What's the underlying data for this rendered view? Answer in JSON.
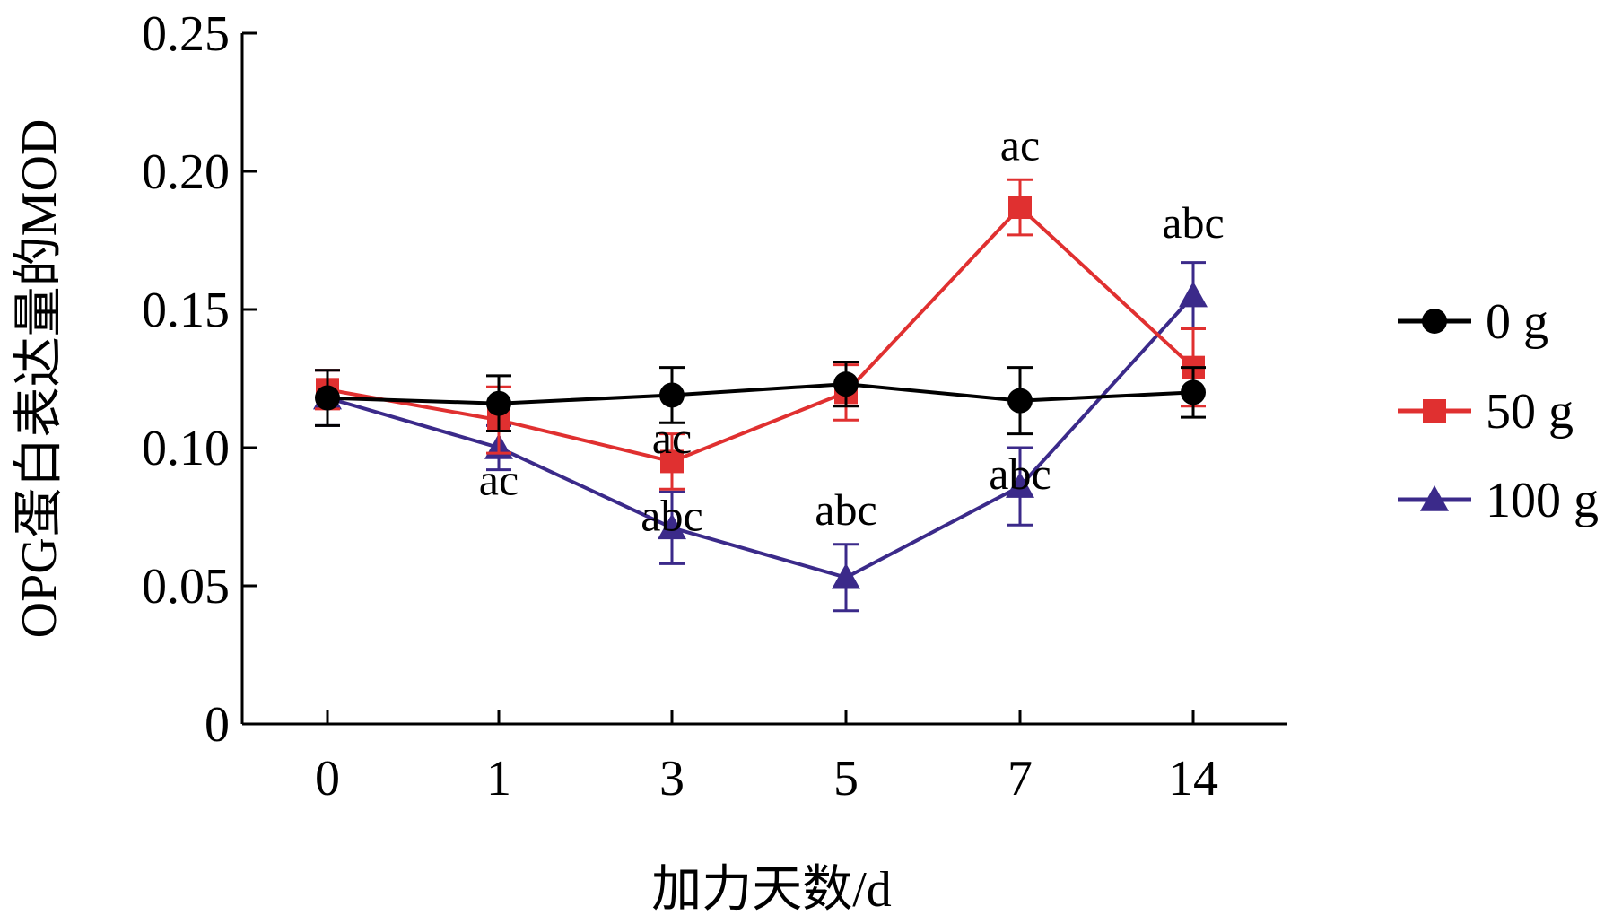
{
  "chart_data": {
    "type": "line",
    "title": "",
    "xlabel": "加力天数/d",
    "ylabel": "OPG蛋白表达量的MOD",
    "categories": [
      "0",
      "1",
      "3",
      "5",
      "7",
      "14"
    ],
    "ylim": [
      0,
      0.25
    ],
    "yticks": [
      "0",
      "0.05",
      "0.10",
      "0.15",
      "0.20",
      "0.25"
    ],
    "grid": false,
    "legend_position": "right",
    "series": [
      {
        "name": "0 g",
        "color": "#000000",
        "marker": "circle",
        "values": [
          0.118,
          0.116,
          0.119,
          0.123,
          0.117,
          0.12
        ],
        "errors": [
          0.01,
          0.01,
          0.01,
          0.008,
          0.012,
          0.009
        ]
      },
      {
        "name": "50 g",
        "color": "#e03030",
        "marker": "square",
        "values": [
          0.121,
          0.11,
          0.095,
          0.12,
          0.187,
          0.129
        ],
        "errors": [
          0.007,
          0.012,
          0.01,
          0.01,
          0.01,
          0.014
        ]
      },
      {
        "name": "100 g",
        "color": "#3b2a8a",
        "marker": "triangle",
        "values": [
          0.118,
          0.1,
          0.071,
          0.053,
          0.086,
          0.155
        ],
        "errors": [
          0.01,
          0.008,
          0.013,
          0.012,
          0.014,
          0.012
        ]
      }
    ],
    "annotations": [
      {
        "text": "ac",
        "x": "1",
        "y": 0.083
      },
      {
        "text": "ac",
        "x": "3",
        "y": 0.098
      },
      {
        "text": "abc",
        "x": "3",
        "y": 0.07
      },
      {
        "text": "abc",
        "x": "5",
        "y": 0.072
      },
      {
        "text": "abc",
        "x": "7",
        "y": 0.085
      },
      {
        "text": "ac",
        "x": "7",
        "y": 0.204
      },
      {
        "text": "abc",
        "x": "14",
        "y": 0.176
      }
    ]
  }
}
